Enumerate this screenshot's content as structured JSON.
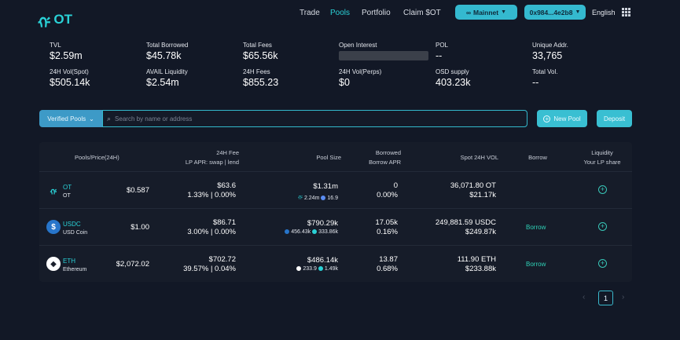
{
  "brand": {
    "name": "OT",
    "mark": "ᡤ"
  },
  "nav": [
    {
      "label": "Trade",
      "active": false
    },
    {
      "label": "Pools",
      "active": true
    },
    {
      "label": "Portfolio",
      "active": false
    },
    {
      "label": "Claim $OT",
      "active": false
    }
  ],
  "network": {
    "icon": "∞",
    "label": "Mainnet"
  },
  "wallet": {
    "label": "0x984...4e2b8"
  },
  "language": "English",
  "stats": [
    {
      "label": "TVL",
      "value": "$2.59m"
    },
    {
      "label": "Total Borrowed",
      "value": "$45.78k"
    },
    {
      "label": "Total Fees",
      "value": "$65.56k"
    },
    {
      "label": "Open Interest",
      "value": ""
    },
    {
      "label": "POL",
      "value": "--"
    },
    {
      "label": "Unique Addr.",
      "value": "33,765"
    },
    {
      "label": "24H Vol(Spot)",
      "value": "$505.14k"
    },
    {
      "label": "AVAIL Liquidity",
      "value": "$2.54m"
    },
    {
      "label": "24H Fees",
      "value": "$855.23"
    },
    {
      "label": "24H Vol(Perps)",
      "value": "$0"
    },
    {
      "label": "OSD supply",
      "value": "403.23k"
    },
    {
      "label": "Total Vol.",
      "value": "--"
    }
  ],
  "toolbar": {
    "filter_label": "Verified Pools",
    "search_placeholder": "Search by name or address",
    "new_pool_label": "New Pool",
    "deposit_label": "Deposit"
  },
  "table": {
    "headers": {
      "pools": "Pools/Price(24H)",
      "fee_1": "24H Fee",
      "fee_2": "LP APR: swap | lend",
      "pool_size": "Pool Size",
      "borrowed_1": "Borrowed",
      "borrowed_2": "Borrow APR",
      "spot_vol": "Spot 24H VOL",
      "borrow": "Borrow",
      "liquidity_1": "Liquidity",
      "liquidity_2": "Your LP share"
    },
    "rows": [
      {
        "symbol": "OT",
        "name": "OT",
        "price": "$0.587",
        "fee": "$63.6",
        "apr": "1.33% | 0.00%",
        "pool_size": "$1.31m",
        "comp_a": "2.24m",
        "comp_b": "16.9",
        "borrowed": "0",
        "borrow_apr": "0.00%",
        "spot_vol": "36,071.80 OT",
        "spot_vol_usd": "$21.17k",
        "borrow_label": ""
      },
      {
        "symbol": "USDC",
        "name": "USD Coin",
        "price": "$1.00",
        "fee": "$86.71",
        "apr": "3.00% | 0.00%",
        "pool_size": "$790.29k",
        "comp_a": "456.43k",
        "comp_b": "333.86k",
        "borrowed": "17.05k",
        "borrow_apr": "0.16%",
        "spot_vol": "249,881.59 USDC",
        "spot_vol_usd": "$249.87k",
        "borrow_label": "Borrow"
      },
      {
        "symbol": "ETH",
        "name": "Ethereum",
        "price": "$2,072.02",
        "fee": "$702.72",
        "apr": "39.57% | 0.04%",
        "pool_size": "$486.14k",
        "comp_a": "233.9",
        "comp_b": "1.49k",
        "borrowed": "13.87",
        "borrow_apr": "0.68%",
        "spot_vol": "111.90 ETH",
        "spot_vol_usd": "$233.88k",
        "borrow_label": "Borrow"
      }
    ]
  },
  "pagination": {
    "current": "1",
    "prev": "‹",
    "next": "›"
  },
  "colors": {
    "accent": "#2ad1d6",
    "background": "#121826",
    "borrow": "#2fd2b7"
  }
}
